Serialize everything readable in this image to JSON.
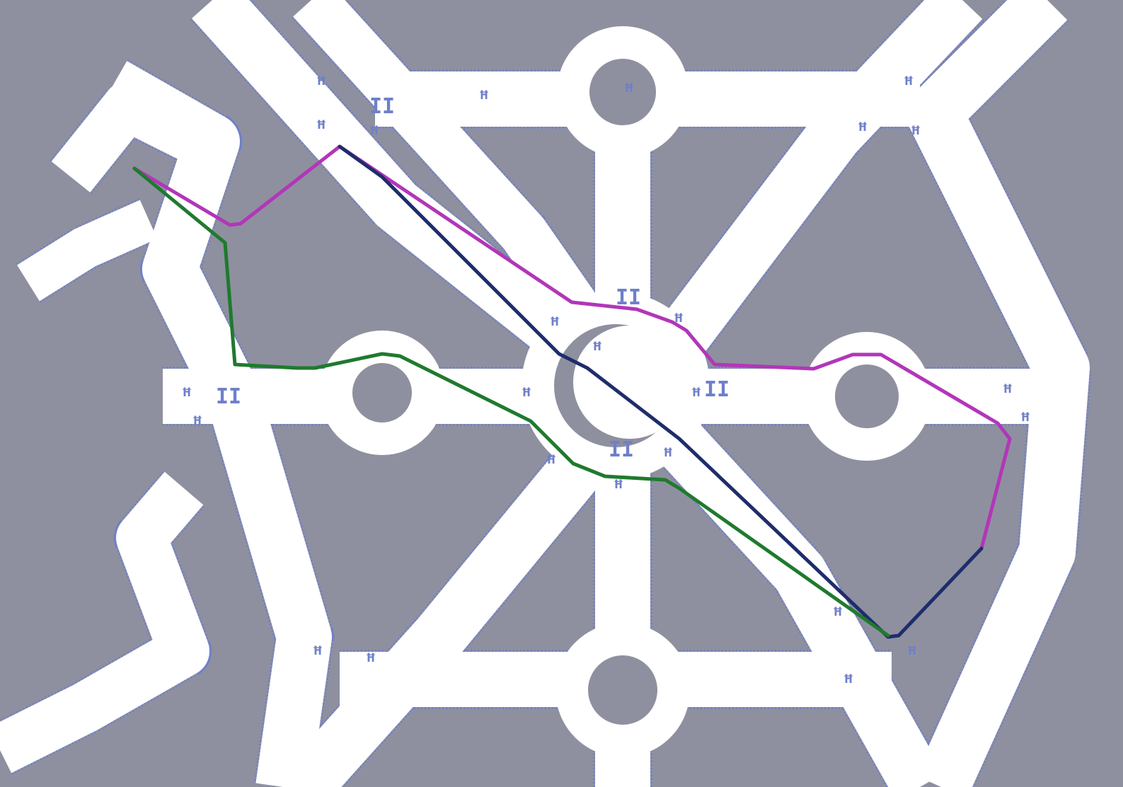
{
  "map": {
    "background_color": "#8e909f",
    "road_color": "#ffffff",
    "road_edge_color": "#6f7fc9",
    "routes": [
      {
        "id": "magenta",
        "color": "#b236b8"
      },
      {
        "id": "navy",
        "color": "#1e2d6b"
      },
      {
        "id": "green",
        "color": "#1f7a2e"
      }
    ],
    "glyph_labels": [
      "ꟸ",
      "II",
      "ꟸ",
      "ꟸ",
      "ꟸ",
      "ꟸ",
      "ꟸ",
      "ꟸ",
      "ꟸ",
      "ꟸ",
      "ꟸ",
      "II",
      "ꟸ",
      "ꟸ",
      "II",
      "ꟸ",
      "ꟸ",
      "ꟸ",
      "II",
      "ꟸ",
      "ꟸ",
      "ꟸ",
      "ꟸ",
      "ꟸ",
      "II",
      "ꟸ",
      "ꟸ",
      "ꟸ",
      "ꟸ",
      "ꟸ"
    ]
  }
}
